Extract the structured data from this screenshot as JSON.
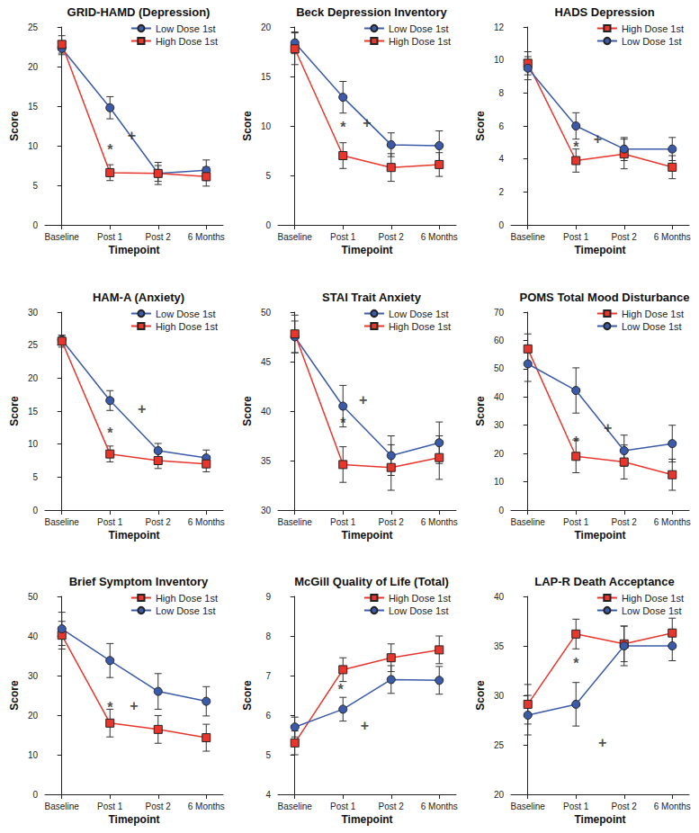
{
  "chart_data": [
    {
      "type": "line",
      "title": "GRID-HAMD (Depression)",
      "x_label": "Timepoint",
      "y_label": "Score",
      "categories": [
        "Baseline",
        "Post 1",
        "Post 2",
        "6 Months"
      ],
      "series": [
        {
          "name": "Low Dose 1st",
          "color": "#3b5ba9",
          "marker": "circle",
          "line_style": "solid",
          "values": [
            22.3,
            14.8,
            6.5,
            6.9
          ],
          "errors": [
            0.8,
            1.4,
            1.0,
            1.3
          ]
        },
        {
          "name": "High Dose 1st",
          "color": "#e8362d",
          "marker": "square",
          "line_style": "solid",
          "values": [
            22.8,
            6.6,
            6.5,
            6.1
          ],
          "errors": [
            1.1,
            1.0,
            1.4,
            1.2
          ]
        }
      ],
      "ylim": [
        0,
        25
      ],
      "yticks": [
        0,
        5,
        10,
        15,
        20,
        25
      ],
      "grid": false,
      "legend": "upper right",
      "annotations": [
        {
          "text": "*",
          "x": 1,
          "y": 9.5
        },
        {
          "text": "+",
          "x": 1.45,
          "y": 11.3
        }
      ]
    },
    {
      "type": "line",
      "title": "Beck Depression Inventory",
      "x_label": "Timepoint",
      "y_label": "Score",
      "categories": [
        "Baseline",
        "Post 1",
        "Post 2",
        "6 Months"
      ],
      "series": [
        {
          "name": "Low Dose 1st",
          "color": "#3b5ba9",
          "marker": "circle",
          "line_style": "solid",
          "values": [
            18.4,
            12.9,
            8.1,
            8.0
          ],
          "errors": [
            1.1,
            1.6,
            1.2,
            1.5
          ]
        },
        {
          "name": "High Dose 1st",
          "color": "#e8362d",
          "marker": "square",
          "line_style": "solid",
          "values": [
            17.8,
            7.0,
            5.8,
            6.1
          ],
          "errors": [
            1.6,
            1.3,
            1.4,
            1.2
          ]
        }
      ],
      "ylim": [
        0,
        20
      ],
      "yticks": [
        0,
        5,
        10,
        15,
        20
      ],
      "grid": false,
      "legend": "upper right",
      "annotations": [
        {
          "text": "*",
          "x": 1,
          "y": 9.9
        },
        {
          "text": "+",
          "x": 1.5,
          "y": 10.3
        }
      ]
    },
    {
      "type": "line",
      "title": "HADS Depression",
      "x_label": "Timepoint",
      "y_label": "Score",
      "categories": [
        "Baseline",
        "Post 1",
        "Post 2",
        "6 Months"
      ],
      "series": [
        {
          "name": "High Dose 1st",
          "color": "#e8362d",
          "marker": "square",
          "line_style": "solid",
          "values": [
            9.8,
            3.9,
            4.3,
            3.5
          ],
          "errors": [
            0.7,
            0.7,
            0.9,
            0.7
          ]
        },
        {
          "name": "Low Dose 1st",
          "color": "#3b5ba9",
          "marker": "circle",
          "line_style": "solid",
          "values": [
            9.5,
            6.0,
            4.6,
            4.6
          ],
          "errors": [
            0.7,
            0.8,
            0.7,
            0.7
          ]
        }
      ],
      "ylim": [
        0,
        12
      ],
      "yticks": [
        0,
        2,
        4,
        6,
        8,
        10,
        12
      ],
      "grid": false,
      "legend": "upper right",
      "annotations": [
        {
          "text": "*",
          "x": 1,
          "y": 4.7
        },
        {
          "text": "+",
          "x": 1.45,
          "y": 5.2
        }
      ]
    },
    {
      "type": "line",
      "title": "HAM-A (Anxiety)",
      "x_label": "Timepoint",
      "y_label": "Score",
      "categories": [
        "Baseline",
        "Post 1",
        "Post 2",
        "6 Months"
      ],
      "series": [
        {
          "name": "Low Dose 1st",
          "color": "#3b5ba9",
          "marker": "circle",
          "line_style": "solid",
          "values": [
            25.8,
            16.6,
            9.0,
            7.9
          ],
          "errors": [
            0.7,
            1.5,
            1.1,
            1.2
          ]
        },
        {
          "name": "High Dose 1st",
          "color": "#e8362d",
          "marker": "square",
          "line_style": "solid",
          "values": [
            25.6,
            8.5,
            7.5,
            7.0
          ],
          "errors": [
            0.9,
            1.2,
            1.2,
            1.2
          ]
        }
      ],
      "ylim": [
        0,
        30
      ],
      "yticks": [
        0,
        5,
        10,
        15,
        20,
        25,
        30
      ],
      "grid": false,
      "legend": "upper right",
      "annotations": [
        {
          "text": "*",
          "x": 1,
          "y": 11.6
        },
        {
          "text": "+",
          "x": 1.66,
          "y": 15.3
        }
      ]
    },
    {
      "type": "line",
      "title": "STAI Trait Anxiety",
      "x_label": "Timepoint",
      "y_label": "Score",
      "categories": [
        "Baseline",
        "Post 1",
        "Post 2",
        "6 Months"
      ],
      "series": [
        {
          "name": "Low Dose 1st",
          "color": "#3b5ba9",
          "marker": "circle",
          "line_style": "solid",
          "values": [
            47.5,
            40.5,
            35.5,
            36.8
          ],
          "errors": [
            1.6,
            2.1,
            2.0,
            2.1
          ]
        },
        {
          "name": "High Dose 1st",
          "color": "#e8362d",
          "marker": "square",
          "line_style": "solid",
          "values": [
            47.8,
            34.6,
            34.3,
            35.3
          ],
          "errors": [
            1.9,
            1.8,
            2.3,
            2.2
          ]
        }
      ],
      "ylim": [
        30,
        50
      ],
      "yticks": [
        30,
        35,
        40,
        45,
        50
      ],
      "grid": false,
      "legend": "upper right",
      "annotations": [
        {
          "text": "*",
          "x": 1,
          "y": 38.8
        },
        {
          "text": "+",
          "x": 1.42,
          "y": 41.1
        }
      ]
    },
    {
      "type": "line",
      "title": "POMS Total Mood Disturbance",
      "x_label": "Timepoint",
      "y_label": "Score",
      "categories": [
        "Baseline",
        "Post 1",
        "Post 2",
        "6 Months"
      ],
      "series": [
        {
          "name": "High Dose 1st",
          "color": "#e8362d",
          "marker": "square",
          "line_style": "solid",
          "values": [
            57.0,
            19.0,
            17.0,
            12.5
          ],
          "errors": [
            5.3,
            5.8,
            6.0,
            5.5
          ]
        },
        {
          "name": "Low Dose 1st",
          "color": "#3b5ba9",
          "marker": "circle",
          "line_style": "solid",
          "values": [
            51.7,
            42.3,
            21.0,
            23.5
          ],
          "errors": [
            6.2,
            8.0,
            5.5,
            6.5
          ]
        }
      ],
      "ylim": [
        0,
        70
      ],
      "yticks": [
        0,
        10,
        20,
        30,
        40,
        50,
        60,
        70
      ],
      "grid": false,
      "legend": "upper right",
      "annotations": [
        {
          "text": "*",
          "x": 1,
          "y": 24.1
        },
        {
          "text": "+",
          "x": 1.66,
          "y": 29.2
        }
      ]
    },
    {
      "type": "line",
      "title": "Brief Symptom Inventory",
      "x_label": "Timepoint",
      "y_label": "Score",
      "categories": [
        "Baseline",
        "Post 1",
        "Post 2",
        "6 Months"
      ],
      "series": [
        {
          "name": "High Dose 1st",
          "color": "#e8362d",
          "marker": "square",
          "line_style": "solid",
          "values": [
            40.2,
            18.0,
            16.4,
            14.3
          ],
          "errors": [
            3.5,
            3.5,
            3.5,
            3.4
          ]
        },
        {
          "name": "Low Dose 1st",
          "color": "#3b5ba9",
          "marker": "circle",
          "line_style": "solid",
          "values": [
            41.8,
            33.8,
            26.0,
            23.5
          ],
          "errors": [
            4.2,
            4.3,
            4.5,
            3.7
          ]
        }
      ],
      "ylim": [
        0,
        50
      ],
      "yticks": [
        0,
        10,
        20,
        30,
        40,
        50
      ],
      "grid": false,
      "legend": "upper right",
      "annotations": [
        {
          "text": "*",
          "x": 1,
          "y": 22
        },
        {
          "text": "+",
          "x": 1.5,
          "y": 22.5
        }
      ]
    },
    {
      "type": "line",
      "title": "McGill Quality of Life (Total)",
      "x_label": "Timepoint",
      "y_label": "Score",
      "categories": [
        "Baseline",
        "Post 1",
        "Post 2",
        "6 Months"
      ],
      "series": [
        {
          "name": "High Dose 1st",
          "color": "#e8362d",
          "marker": "square",
          "line_style": "solid",
          "values": [
            5.3,
            7.15,
            7.45,
            7.65
          ],
          "errors": [
            0.3,
            0.3,
            0.35,
            0.35
          ]
        },
        {
          "name": "Low Dose 1st",
          "color": "#3b5ba9",
          "marker": "circle",
          "line_style": "solid",
          "values": [
            5.7,
            6.15,
            6.9,
            6.88
          ],
          "errors": [
            0.25,
            0.3,
            0.35,
            0.35
          ]
        }
      ],
      "ylim": [
        4,
        9
      ],
      "yticks": [
        4,
        5,
        6,
        7,
        8,
        9
      ],
      "grid": false,
      "legend": "upper right",
      "annotations": [
        {
          "text": "*",
          "x": 0.95,
          "y": 6.65
        },
        {
          "text": "+",
          "x": 1.45,
          "y": 5.75
        }
      ]
    },
    {
      "type": "line",
      "title": "LAP-R Death Acceptance",
      "x_label": "Timepoint",
      "y_label": "Score",
      "categories": [
        "Baseline",
        "Post 1",
        "Post 2",
        "6 Months"
      ],
      "series": [
        {
          "name": "High Dose 1st",
          "color": "#e8362d",
          "marker": "square",
          "line_style": "solid",
          "values": [
            29.1,
            36.2,
            35.2,
            36.3
          ],
          "errors": [
            2.0,
            1.5,
            1.8,
            1.5
          ]
        },
        {
          "name": "Low Dose 1st",
          "color": "#3b5ba9",
          "marker": "circle",
          "line_style": "solid",
          "values": [
            28.0,
            29.1,
            35.0,
            35.0
          ],
          "errors": [
            2.0,
            2.2,
            2.0,
            1.5
          ]
        }
      ],
      "ylim": [
        20,
        40
      ],
      "yticks": [
        20,
        25,
        30,
        35,
        40
      ],
      "grid": false,
      "legend": "upper right",
      "annotations": [
        {
          "text": "*",
          "x": 1,
          "y": 33.2
        },
        {
          "text": "+",
          "x": 1.55,
          "y": 25.2
        }
      ]
    }
  ]
}
